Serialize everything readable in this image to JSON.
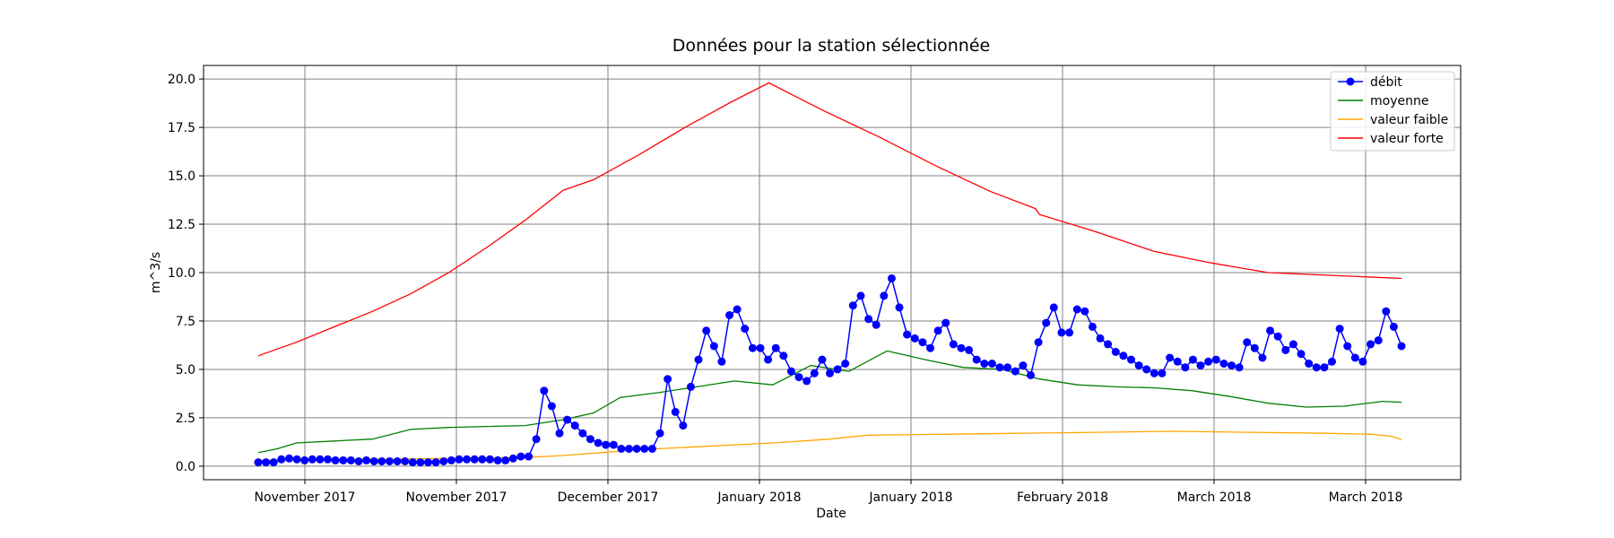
{
  "chart_data": {
    "type": "line",
    "title": "Données pour la station sélectionnée",
    "xlabel": "Date",
    "ylabel": "m^3/s",
    "ylim": [
      -0.7,
      20.7
    ],
    "y_ticks": [
      0.0,
      2.5,
      5.0,
      7.5,
      10.0,
      12.5,
      15.0,
      17.5,
      20.0
    ],
    "x_tick_labels": [
      "November 2017",
      "November 2017",
      "December 2017",
      "January 2018",
      "January 2018",
      "February 2018",
      "March 2018",
      "March 2018"
    ],
    "grid": true,
    "legend_position": "top-right",
    "colors": {
      "debit": "#0000ff",
      "moyenne": "#008000",
      "faible": "#ffa500",
      "forte": "#ff0000",
      "grid": "#808080"
    },
    "series": [
      {
        "name": "débit",
        "style": "line-with-markers",
        "values": [
          0.2,
          0.2,
          0.2,
          0.35,
          0.4,
          0.35,
          0.3,
          0.35,
          0.35,
          0.35,
          0.3,
          0.3,
          0.3,
          0.25,
          0.3,
          0.25,
          0.25,
          0.25,
          0.25,
          0.25,
          0.2,
          0.2,
          0.2,
          0.2,
          0.25,
          0.3,
          0.35,
          0.35,
          0.35,
          0.35,
          0.35,
          0.3,
          0.3,
          0.4,
          0.5,
          0.5,
          1.4,
          3.9,
          3.1,
          1.7,
          2.4,
          2.1,
          1.7,
          1.4,
          1.2,
          1.1,
          1.1,
          0.9,
          0.9,
          0.9,
          0.9,
          0.9,
          1.7,
          4.5,
          2.8,
          2.1,
          4.1,
          5.5,
          7.0,
          6.2,
          5.4,
          7.8,
          8.1,
          7.1,
          6.1,
          6.1,
          5.5,
          6.1,
          5.7,
          4.9,
          4.6,
          4.4,
          4.8,
          5.5,
          4.8,
          5.0,
          5.3,
          8.3,
          8.8,
          7.6,
          7.3,
          8.8,
          9.7,
          8.2,
          6.8,
          6.6,
          6.4,
          6.1,
          7.0,
          7.4,
          6.3,
          6.1,
          6.0,
          5.5,
          5.3,
          5.3,
          5.1,
          5.1,
          4.9,
          5.2,
          4.7,
          6.4,
          7.4,
          8.2,
          6.9,
          6.9,
          8.1,
          8.0,
          7.2,
          6.6,
          6.3,
          5.9,
          5.7,
          5.5,
          5.2,
          5.0,
          4.8,
          4.8,
          5.6,
          5.4,
          5.1,
          5.5,
          5.2,
          5.4,
          5.5,
          5.3,
          5.2,
          5.1,
          6.4,
          6.1,
          5.6,
          7.0,
          6.7,
          6.0,
          6.3,
          5.8,
          5.3,
          5.1,
          5.1,
          5.4,
          7.1,
          6.2,
          5.6,
          5.4,
          6.3,
          6.5,
          8.0,
          7.2,
          6.2
        ]
      },
      {
        "name": "moyenne",
        "style": "line",
        "values": [
          0.7,
          0.9,
          1.2,
          1.3,
          1.4,
          1.9,
          2.0,
          2.05,
          2.1,
          2.4,
          2.75,
          3.55,
          3.8,
          4.1,
          4.4,
          4.2,
          5.2,
          4.9,
          5.95,
          5.5,
          5.1,
          5.0,
          4.5,
          4.2,
          4.1,
          4.05,
          3.9,
          3.6,
          3.25,
          3.05,
          3.1,
          3.35,
          3.3
        ],
        "x_index": [
          0,
          5,
          10,
          20,
          30,
          40,
          50,
          60,
          70,
          80,
          88,
          95,
          105,
          115,
          125,
          135,
          145,
          155,
          165,
          175,
          185,
          195,
          205,
          215,
          225,
          235,
          245,
          255,
          265,
          275,
          285,
          295,
          300
        ]
      },
      {
        "name": "valeur faible",
        "style": "line",
        "values": [
          0.3,
          0.35,
          0.4,
          0.45,
          0.55,
          0.7,
          0.85,
          1.0,
          1.2,
          1.4,
          1.6,
          1.65,
          1.7,
          1.75,
          1.8,
          1.75,
          1.7,
          1.65,
          1.55,
          1.45,
          1.35
        ],
        "x_index": [
          0,
          20,
          50,
          70,
          80,
          90,
          100,
          115,
          135,
          150,
          160,
          180,
          200,
          220,
          240,
          260,
          280,
          292,
          297,
          299,
          300
        ]
      },
      {
        "name": "valeur forte",
        "style": "line",
        "values": [
          5.7,
          6.4,
          7.2,
          8.0,
          8.9,
          10.0,
          11.3,
          12.7,
          14.25,
          14.8,
          16.1,
          17.5,
          18.8,
          19.8,
          18.4,
          17.0,
          15.5,
          14.2,
          13.3,
          13.0,
          12.1,
          11.1,
          10.5,
          10.0,
          9.7
        ],
        "x_index": [
          0,
          10,
          20,
          30,
          40,
          50,
          60,
          70,
          80,
          88,
          100,
          112,
          124,
          134,
          148,
          163,
          178,
          192,
          204,
          205,
          220,
          235,
          250,
          265,
          300
        ]
      }
    ]
  }
}
